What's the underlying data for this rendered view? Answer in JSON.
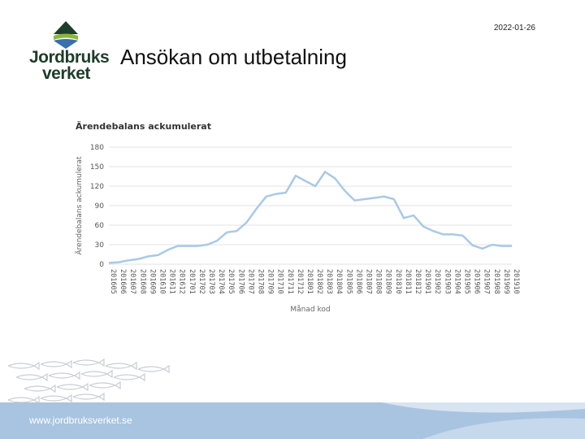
{
  "header": {
    "date": "2022-01-26",
    "title": "Ansökan om utbetalning",
    "logo_line1": "Jordbruks",
    "logo_line2": "verket"
  },
  "footer": {
    "url": "www.jordbruksverket.se"
  },
  "colors": {
    "line": "#a9c9e6",
    "grid": "#e3e3e3",
    "footer": "#a8c4e0",
    "logo_green": "#2f8a3a",
    "logo_blue": "#3a6fb0"
  },
  "chart_data": {
    "type": "line",
    "title": "Ärendebalans ackumulerat",
    "xlabel": "Månad kod",
    "ylabel": "Ärendebalans ackumulerat",
    "ylim": [
      0,
      180
    ],
    "yticks": [
      0,
      30,
      60,
      90,
      120,
      150,
      180
    ],
    "grid": true,
    "categories": [
      "201605",
      "201606",
      "201607",
      "201608",
      "201609",
      "201610",
      "201611",
      "201612",
      "201701",
      "201702",
      "201703",
      "201704",
      "201705",
      "201706",
      "201707",
      "201708",
      "201709",
      "201710",
      "201711",
      "201712",
      "201801",
      "201802",
      "201803",
      "201804",
      "201805",
      "201806",
      "201807",
      "201808",
      "201809",
      "201810",
      "201811",
      "201812",
      "201901",
      "201902",
      "201903",
      "201904",
      "201905",
      "201906",
      "201907",
      "201908",
      "201909",
      "201910"
    ],
    "tick_labels": [
      "201605",
      "201606",
      "201607",
      "201608",
      "201609",
      "201610",
      "201611",
      "201612",
      "201701",
      "201702",
      "201703",
      "201704",
      "201705",
      "201706",
      "201707",
      "201708",
      "201709",
      "201710",
      "201711",
      "201712",
      "201801",
      "201802",
      "201803",
      "201804",
      "201805",
      "201806",
      "201807",
      "201808",
      "201809",
      "201810",
      "201811",
      "201812",
      "201901",
      "201902",
      "201903",
      "201904",
      "201905",
      "201906",
      "201907",
      "201908",
      "201909",
      "201910"
    ],
    "series": [
      {
        "values": [
          2,
          3,
          6,
          8,
          12,
          14,
          22,
          28,
          28,
          28,
          30,
          36,
          49,
          51,
          64,
          85,
          104,
          108,
          110,
          136,
          128,
          120,
          142,
          132,
          113,
          98,
          100,
          102,
          104,
          100,
          71,
          75,
          58,
          51,
          46,
          46,
          44,
          29,
          24,
          30,
          28,
          28
        ]
      }
    ]
  }
}
